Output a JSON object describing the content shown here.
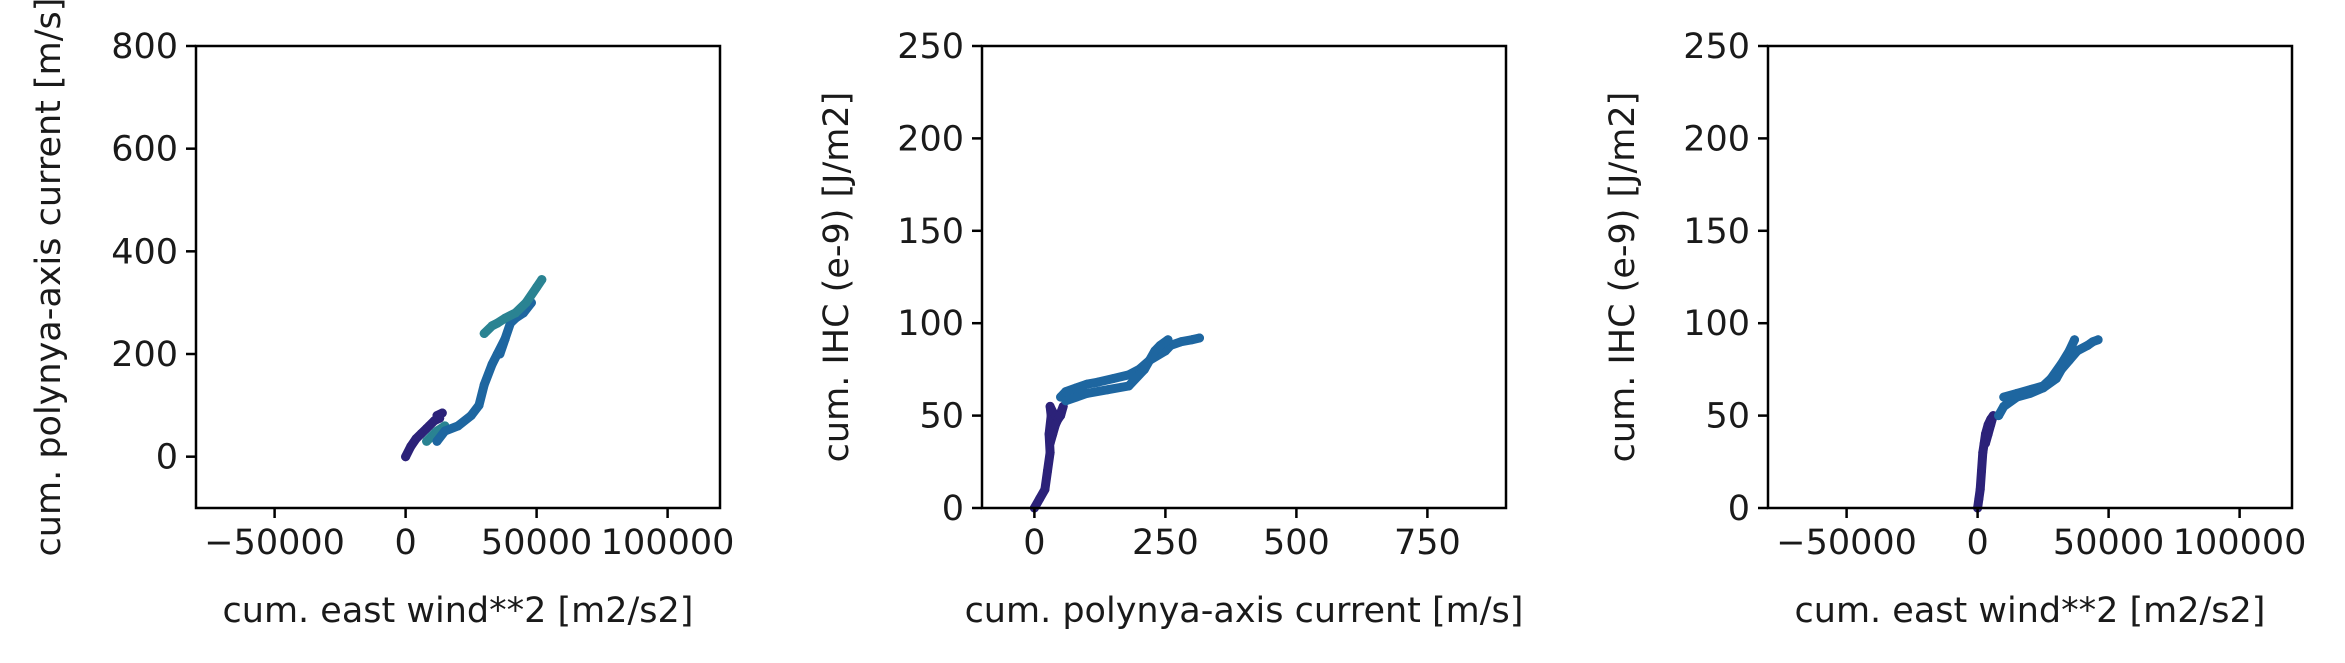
{
  "chart_data": [
    {
      "type": "scatter",
      "xlabel": "cum. east wind**2 [m2/s2]",
      "ylabel": "cum. polynya-axis current [m/s]",
      "xlim": [
        -80000,
        120000
      ],
      "ylim": [
        -100,
        800
      ],
      "xticks": [
        -50000,
        0,
        50000,
        100000
      ],
      "xtick_labels": [
        "−50000",
        "0",
        "50000",
        "100000"
      ],
      "yticks": [
        0,
        200,
        400,
        600,
        800
      ],
      "ytick_labels": [
        "0",
        "200",
        "400",
        "600",
        "800"
      ],
      "grid": false,
      "series": [
        {
          "color": "#2c2279",
          "x": [
            0,
            2000,
            4000,
            6000,
            8000,
            9000,
            11000,
            13000,
            12000,
            14000
          ],
          "y": [
            0,
            20,
            35,
            45,
            55,
            60,
            70,
            75,
            80,
            85
          ]
        },
        {
          "color": "#2a8392",
          "x": [
            8000,
            10000,
            12000,
            15000
          ],
          "y": [
            30,
            40,
            50,
            60
          ]
        },
        {
          "color": "#1e66a0",
          "x": [
            12000,
            15000,
            20000,
            25000,
            28000,
            30000,
            33000,
            35000,
            38000,
            36000,
            40000,
            42000,
            45000,
            48000
          ],
          "y": [
            30,
            50,
            60,
            80,
            100,
            140,
            180,
            200,
            230,
            200,
            260,
            270,
            280,
            300
          ]
        },
        {
          "color": "#2a8392",
          "x": [
            30000,
            33000,
            35000,
            38000,
            42000,
            46000,
            50000,
            52000
          ],
          "y": [
            240,
            255,
            260,
            270,
            280,
            300,
            330,
            345
          ]
        }
      ]
    },
    {
      "type": "scatter",
      "xlabel": "cum. polynya-axis current [m/s]",
      "ylabel": "cum. IHC (e-9) [J/m2]",
      "xlim": [
        -100,
        900
      ],
      "ylim": [
        0,
        250
      ],
      "xticks": [
        0,
        250,
        500,
        750
      ],
      "xtick_labels": [
        "0",
        "250",
        "500",
        "750"
      ],
      "yticks": [
        0,
        50,
        100,
        150,
        200,
        250
      ],
      "ytick_labels": [
        "0",
        "50",
        "100",
        "150",
        "200",
        "250"
      ],
      "grid": false,
      "series": [
        {
          "color": "#2c2279",
          "x": [
            0,
            10,
            20,
            25,
            30,
            28,
            32,
            30,
            35,
            40,
            45,
            50,
            55,
            48,
            40,
            35,
            30
          ],
          "y": [
            0,
            5,
            10,
            20,
            30,
            40,
            50,
            55,
            52,
            50,
            48,
            50,
            55,
            50,
            45,
            40,
            35
          ]
        },
        {
          "color": "#1e66a0",
          "x": [
            50,
            60,
            80,
            100,
            120,
            150,
            180,
            200,
            220,
            250,
            260,
            280,
            300,
            315
          ],
          "y": [
            60,
            63,
            65,
            67,
            68,
            70,
            72,
            75,
            80,
            85,
            88,
            90,
            91,
            92
          ]
        },
        {
          "color": "#1e66a0",
          "x": [
            60,
            80,
            100,
            140,
            180,
            210,
            230,
            240,
            255
          ],
          "y": [
            58,
            60,
            62,
            64,
            66,
            75,
            85,
            88,
            91
          ]
        }
      ]
    },
    {
      "type": "scatter",
      "xlabel": "cum. east wind**2 [m2/s2]",
      "ylabel": "cum. IHC (e-9) [J/m2]",
      "xlim": [
        -80000,
        120000
      ],
      "ylim": [
        0,
        250
      ],
      "xticks": [
        -50000,
        0,
        50000,
        100000
      ],
      "xtick_labels": [
        "−50000",
        "0",
        "50000",
        "100000"
      ],
      "yticks": [
        0,
        50,
        100,
        150,
        200,
        250
      ],
      "ytick_labels": [
        "0",
        "50",
        "100",
        "150",
        "200",
        "250"
      ],
      "grid": false,
      "series": [
        {
          "color": "#2c2279",
          "x": [
            0,
            500,
            1000,
            1500,
            2000,
            2500,
            3000,
            4000,
            5000,
            6000,
            5000,
            4000,
            3000
          ],
          "y": [
            0,
            5,
            10,
            20,
            30,
            35,
            40,
            45,
            48,
            50,
            45,
            40,
            35
          ]
        },
        {
          "color": "#1e66a0",
          "x": [
            8000,
            10000,
            15000,
            20000,
            25000,
            30000,
            32000,
            35000,
            38000,
            42000,
            44000,
            46000
          ],
          "y": [
            50,
            55,
            60,
            62,
            65,
            70,
            75,
            80,
            85,
            88,
            90,
            91
          ]
        },
        {
          "color": "#1e66a0",
          "x": [
            10000,
            15000,
            20000,
            25000,
            28000,
            32000,
            35000,
            37000
          ],
          "y": [
            60,
            62,
            64,
            66,
            70,
            78,
            85,
            91
          ]
        }
      ]
    }
  ]
}
